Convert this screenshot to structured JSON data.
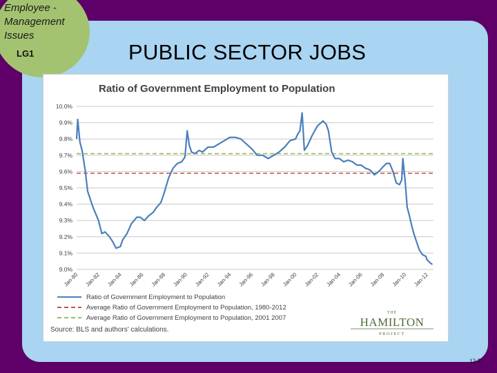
{
  "slide": {
    "badge_text": "Employee -\nManagement\nIssues",
    "badge_lg": "LG1",
    "title": "PUBLIC SECTOR JOBS",
    "page_number": "12-7",
    "colors": {
      "background": "#5e0068",
      "panel": "#a9d4f2",
      "badge": "#a3c370"
    }
  },
  "chart_data": {
    "type": "line",
    "title": "Ratio of Government Employment to Population",
    "xlabel": "",
    "ylabel": "",
    "x": [
      1980.0,
      1980.1,
      1980.3,
      1980.5,
      1980.8,
      1981.0,
      1981.5,
      1982.0,
      1982.3,
      1982.6,
      1983.0,
      1983.3,
      1983.6,
      1984.0,
      1984.2,
      1984.6,
      1985.0,
      1985.5,
      1985.8,
      1986.2,
      1986.6,
      1987.0,
      1987.3,
      1987.7,
      1988.0,
      1988.4,
      1988.8,
      1989.2,
      1989.6,
      1989.9,
      1990.1,
      1990.3,
      1990.5,
      1990.8,
      1991.2,
      1991.5,
      1992.0,
      1992.5,
      1993.0,
      1993.5,
      1994.0,
      1994.5,
      1995.0,
      1995.5,
      1996.0,
      1996.5,
      1997.0,
      1997.5,
      1998.0,
      1998.5,
      1999.0,
      1999.5,
      2000.0,
      2000.2,
      2000.4,
      2000.6,
      2000.8,
      2001.1,
      2001.5,
      2002.0,
      2002.5,
      2002.8,
      2003.0,
      2003.3,
      2003.6,
      2004.0,
      2004.4,
      2004.8,
      2005.2,
      2005.6,
      2006.0,
      2006.4,
      2006.8,
      2007.2,
      2007.6,
      2008.0,
      2008.3,
      2008.6,
      2008.9,
      2009.2,
      2009.5,
      2009.7,
      2009.8,
      2010.0,
      2010.2,
      2010.4,
      2010.6,
      2010.8,
      2011.0,
      2011.3,
      2011.6,
      2011.9,
      2012.0,
      2012.3,
      2012.5
    ],
    "series": [
      {
        "name": "Ratio of Government Employment to Population",
        "color": "#4a7ebb",
        "values": [
          9.8,
          9.92,
          9.78,
          9.73,
          9.6,
          9.48,
          9.38,
          9.3,
          9.22,
          9.23,
          9.2,
          9.17,
          9.13,
          9.14,
          9.18,
          9.22,
          9.28,
          9.32,
          9.32,
          9.3,
          9.33,
          9.35,
          9.38,
          9.41,
          9.47,
          9.56,
          9.62,
          9.65,
          9.66,
          9.69,
          9.85,
          9.76,
          9.72,
          9.71,
          9.73,
          9.72,
          9.75,
          9.75,
          9.77,
          9.79,
          9.81,
          9.81,
          9.8,
          9.77,
          9.74,
          9.7,
          9.7,
          9.68,
          9.7,
          9.72,
          9.75,
          9.79,
          9.8,
          9.83,
          9.85,
          9.96,
          9.73,
          9.76,
          9.82,
          9.88,
          9.91,
          9.89,
          9.85,
          9.72,
          9.68,
          9.68,
          9.66,
          9.67,
          9.66,
          9.64,
          9.64,
          9.62,
          9.61,
          9.58,
          9.6,
          9.63,
          9.65,
          9.65,
          9.6,
          9.53,
          9.52,
          9.55,
          9.68,
          9.55,
          9.38,
          9.33,
          9.27,
          9.22,
          9.18,
          9.12,
          9.09,
          9.08,
          9.06,
          9.04,
          9.03
        ]
      },
      {
        "name": "Average Ratio of Government Employment to Population, 1980-2012",
        "color": "#c0504d",
        "value": 9.59
      },
      {
        "name": "Average Ratio of Government Employment to Population, 2001 2007",
        "color": "#9bbb59",
        "value": 9.71
      }
    ],
    "ylim": [
      9.0,
      10.0
    ],
    "y_ticks": [
      "9.0%",
      "9.1%",
      "9.2%",
      "9.3%",
      "9.4%",
      "9.5%",
      "9.6%",
      "9.7%",
      "9.8%",
      "9.9%",
      "10.0%"
    ],
    "xlim": [
      1980.0,
      2012.6
    ],
    "x_ticks": [
      "Jan-80",
      "Jan-82",
      "Jan-84",
      "Jan-86",
      "Jan-88",
      "Jan-90",
      "Jan-92",
      "Jan-94",
      "Jan-96",
      "Jan-98",
      "Jan-00",
      "Jan-02",
      "Jan-04",
      "Jan-06",
      "Jan-08",
      "Jan-10",
      "Jan-12"
    ],
    "x_tick_years": [
      1980,
      1982,
      1984,
      1986,
      1988,
      1990,
      1992,
      1994,
      1996,
      1998,
      2000,
      2002,
      2004,
      2006,
      2008,
      2010,
      2012
    ],
    "grid": true,
    "legend_position": "bottom-left",
    "source": "Source: BLS and authors' calculations.",
    "logo": {
      "small": "THE",
      "main": "HAMILTON",
      "sub": "PROJECT",
      "color": "#4e6b3a"
    }
  }
}
